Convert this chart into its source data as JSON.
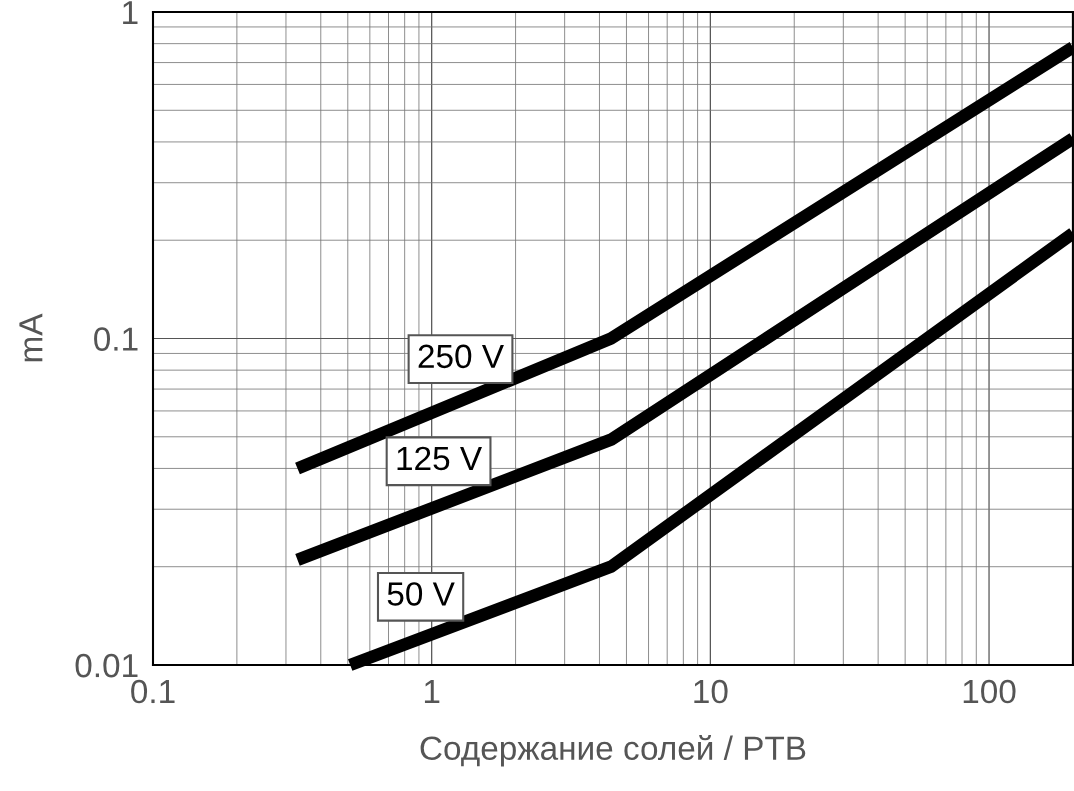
{
  "chart_data": {
    "type": "line",
    "xlabel": "Содержание солей / PTB",
    "ylabel": "mA",
    "log": "xy",
    "xlim": [
      0.1,
      200
    ],
    "ylim": [
      0.01,
      1
    ],
    "xticks": [
      {
        "value": 0.1,
        "label": "0.1"
      },
      1,
      10,
      100
    ],
    "yticks": [
      {
        "value": 0.01,
        "label": "0.01"
      },
      {
        "value": 0.1,
        "label": "0.1"
      },
      1
    ],
    "grid": true,
    "legend": false,
    "marker": "none",
    "line_style": "solid",
    "series": [
      {
        "name": "250 V",
        "color": "#000000",
        "x": [
          0.33,
          4.4,
          200
        ],
        "values": [
          0.04,
          0.1,
          0.78
        ]
      },
      {
        "name": "125 V",
        "color": "#000000",
        "x": [
          0.33,
          4.4,
          200
        ],
        "values": [
          0.021,
          0.049,
          0.41
        ]
      },
      {
        "name": "50 V",
        "color": "#000000",
        "x": [
          0.51,
          4.4,
          200
        ],
        "values": [
          0.01,
          0.02,
          0.21
        ]
      }
    ]
  }
}
